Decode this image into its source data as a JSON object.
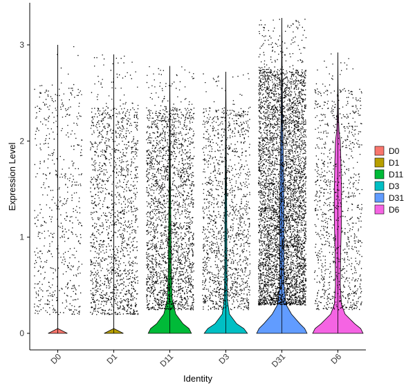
{
  "chart_data": {
    "type": "violin",
    "title": "",
    "xlabel": "Identity",
    "ylabel": "Expression Level",
    "ylim": [
      -0.18,
      3.4
    ],
    "y_ticks": [
      0,
      1,
      2,
      3
    ],
    "categories": [
      "D0",
      "D1",
      "D11",
      "D3",
      "D31",
      "D6"
    ],
    "series": [
      {
        "name": "D0",
        "color": "#F8766D",
        "max": 3.0,
        "cells": 600,
        "point_range": [
          0.2,
          2.6
        ],
        "violin": [
          [
            0,
            0.16
          ],
          [
            0.05,
            0.0
          ],
          [
            3.0,
            0.0
          ]
        ]
      },
      {
        "name": "D1",
        "color": "#B79F00",
        "max": 2.9,
        "cells": 1500,
        "point_range": [
          0.2,
          2.35
        ],
        "violin": [
          [
            0,
            0.16
          ],
          [
            0.05,
            0.0
          ],
          [
            2.9,
            0.0
          ]
        ]
      },
      {
        "name": "D11",
        "color": "#00BA38",
        "max": 2.78,
        "cells": 2300,
        "point_range": [
          0.25,
          2.35
        ],
        "violin": [
          [
            0,
            0.36
          ],
          [
            0.05,
            0.32
          ],
          [
            0.1,
            0.22
          ],
          [
            0.2,
            0.1
          ],
          [
            0.35,
            0.04
          ],
          [
            0.6,
            0.025
          ],
          [
            1.0,
            0.02
          ],
          [
            1.5,
            0.012
          ],
          [
            2.0,
            0.006
          ],
          [
            2.4,
            0.003
          ],
          [
            2.78,
            0.0
          ]
        ]
      },
      {
        "name": "D3",
        "color": "#00BFC4",
        "max": 2.72,
        "cells": 1400,
        "point_range": [
          0.25,
          2.35
        ],
        "violin": [
          [
            0,
            0.36
          ],
          [
            0.05,
            0.3
          ],
          [
            0.1,
            0.18
          ],
          [
            0.2,
            0.06
          ],
          [
            0.35,
            0.025
          ],
          [
            0.7,
            0.018
          ],
          [
            1.3,
            0.015
          ],
          [
            1.8,
            0.008
          ],
          [
            2.3,
            0.004
          ],
          [
            2.72,
            0.0
          ]
        ]
      },
      {
        "name": "D31",
        "color": "#619CFF",
        "max": 3.28,
        "cells": 4800,
        "point_range": [
          0.3,
          2.75
        ],
        "violin": [
          [
            0,
            0.42
          ],
          [
            0.05,
            0.38
          ],
          [
            0.1,
            0.3
          ],
          [
            0.2,
            0.16
          ],
          [
            0.3,
            0.07
          ],
          [
            0.5,
            0.035
          ],
          [
            0.8,
            0.035
          ],
          [
            1.2,
            0.035
          ],
          [
            1.7,
            0.028
          ],
          [
            2.2,
            0.014
          ],
          [
            2.7,
            0.006
          ],
          [
            3.28,
            0.0
          ]
        ]
      },
      {
        "name": "D6",
        "color": "#F564E3",
        "max": 2.92,
        "cells": 1000,
        "point_range": [
          0.25,
          2.55
        ],
        "violin": [
          [
            0,
            0.42
          ],
          [
            0.05,
            0.38
          ],
          [
            0.1,
            0.28
          ],
          [
            0.2,
            0.12
          ],
          [
            0.3,
            0.06
          ],
          [
            0.5,
            0.04
          ],
          [
            0.8,
            0.045
          ],
          [
            1.2,
            0.06
          ],
          [
            1.5,
            0.06
          ],
          [
            1.8,
            0.05
          ],
          [
            2.0,
            0.04
          ],
          [
            2.1,
            0.02
          ],
          [
            2.3,
            0.008
          ],
          [
            2.6,
            0.003
          ],
          [
            2.92,
            0.0
          ]
        ]
      }
    ],
    "legend": {
      "position": "right",
      "entries": [
        "D0",
        "D1",
        "D11",
        "D3",
        "D31",
        "D6"
      ]
    },
    "grid": false
  }
}
